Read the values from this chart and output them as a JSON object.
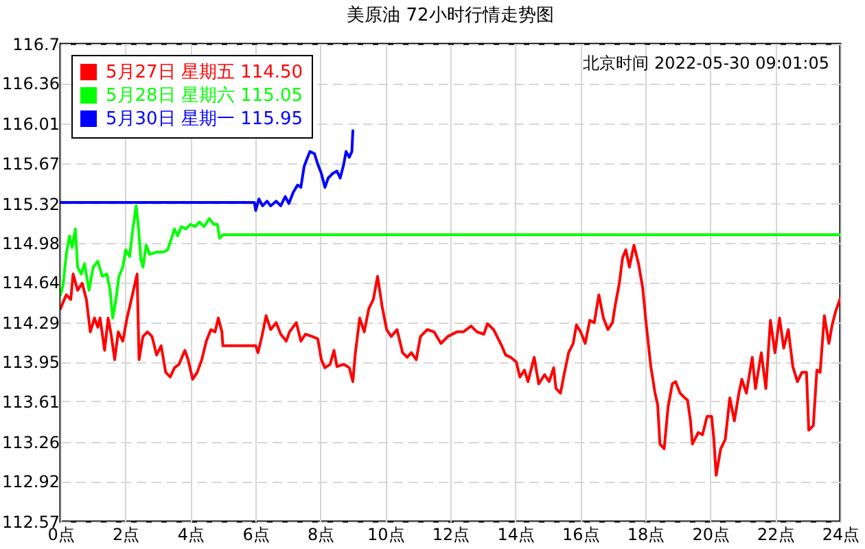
{
  "chart_data": {
    "type": "line",
    "title": "美原油 72小时行情走势图",
    "annotations": [
      "北京时间 2022-05-30 09:01:05"
    ],
    "xlim": [
      0,
      24
    ],
    "xticks": [
      {
        "value": 0,
        "label": "0点"
      },
      {
        "value": 2,
        "label": "2点"
      },
      {
        "value": 4,
        "label": "4点"
      },
      {
        "value": 6,
        "label": "6点"
      },
      {
        "value": 8,
        "label": "8点"
      },
      {
        "value": 10,
        "label": "10点"
      },
      {
        "value": 12,
        "label": "12点"
      },
      {
        "value": 14,
        "label": "14点"
      },
      {
        "value": 16,
        "label": "16点"
      },
      {
        "value": 18,
        "label": "18点"
      },
      {
        "value": 20,
        "label": "20点"
      },
      {
        "value": 22,
        "label": "22点"
      },
      {
        "value": 24,
        "label": "24点"
      }
    ],
    "ylim": [
      112.57,
      116.7
    ],
    "yticks": [
      112.57,
      112.92,
      113.26,
      113.61,
      113.95,
      114.29,
      114.64,
      114.98,
      115.32,
      115.67,
      116.01,
      116.36,
      116.7
    ],
    "grid": true,
    "legend": "top left",
    "line_style": "solid",
    "series": [
      {
        "name": "5月27日 星期五 114.50",
        "color": "#ff0000",
        "x": [
          0,
          0.18,
          0.32,
          0.39,
          0.53,
          0.67,
          0.8,
          0.92,
          1.05,
          1.15,
          1.22,
          1.36,
          1.47,
          1.57,
          1.67,
          1.78,
          1.92,
          2.05,
          2.2,
          2.36,
          2.42,
          2.54,
          2.68,
          2.82,
          2.96,
          3.1,
          3.24,
          3.38,
          3.51,
          3.65,
          3.83,
          3.93,
          4.07,
          4.21,
          4.35,
          4.49,
          4.63,
          4.76,
          4.86,
          4.97,
          5.0,
          6.01,
          6.08,
          6.2,
          6.33,
          6.47,
          6.64,
          6.78,
          6.95,
          7.05,
          7.26,
          7.4,
          7.54,
          7.75,
          7.92,
          8.03,
          8.14,
          8.3,
          8.42,
          8.51,
          8.72,
          8.89,
          9.0,
          9.07,
          9.21,
          9.35,
          9.49,
          9.63,
          9.76,
          9.9,
          10.04,
          10.18,
          10.36,
          10.53,
          10.67,
          10.8,
          10.95,
          11.08,
          11.29,
          11.5,
          11.71,
          11.92,
          12.2,
          12.4,
          12.64,
          12.82,
          13.03,
          13.14,
          13.33,
          13.58,
          13.7,
          13.86,
          14.03,
          14.14,
          14.28,
          14.39,
          14.58,
          14.72,
          14.9,
          15.04,
          15.18,
          15.25,
          15.39,
          15.5,
          15.64,
          15.78,
          15.88,
          16.01,
          16.15,
          16.29,
          16.43,
          16.57,
          16.71,
          16.85,
          16.99,
          17.08,
          17.2,
          17.3,
          17.4,
          17.51,
          17.65,
          17.79,
          17.92,
          18.03,
          18.17,
          18.3,
          18.38,
          18.45,
          18.58,
          18.7,
          18.83,
          18.93,
          19.07,
          19.21,
          19.3,
          19.39,
          19.45,
          19.63,
          19.76,
          19.9,
          20.04,
          20.11,
          20.18,
          20.32,
          20.46,
          20.6,
          20.74,
          20.88,
          20.97,
          21.11,
          21.29,
          21.39,
          21.57,
          21.71,
          21.85,
          21.99,
          22.13,
          22.26,
          22.4,
          22.54,
          22.68,
          22.82,
          22.96,
          23.03,
          23.17,
          23.28,
          23.38,
          23.51,
          23.65,
          23.75,
          23.86,
          24
        ],
        "values": [
          114.41,
          114.53,
          114.49,
          114.71,
          114.57,
          114.63,
          114.49,
          114.21,
          114.33,
          114.25,
          114.33,
          114.05,
          114.33,
          114.17,
          113.97,
          114.21,
          114.13,
          114.33,
          114.51,
          114.71,
          113.97,
          114.17,
          114.21,
          114.17,
          114.01,
          114.09,
          113.86,
          113.82,
          113.9,
          113.93,
          114.05,
          113.97,
          113.8,
          113.86,
          113.97,
          114.13,
          114.23,
          114.21,
          114.33,
          114.21,
          114.09,
          114.09,
          114.03,
          114.17,
          114.35,
          114.23,
          114.29,
          114.19,
          114.13,
          114.21,
          114.29,
          114.13,
          114.19,
          114.17,
          114.15,
          113.97,
          113.9,
          113.93,
          114.05,
          113.91,
          113.93,
          113.9,
          113.78,
          114.01,
          114.33,
          114.21,
          114.41,
          114.49,
          114.69,
          114.43,
          114.23,
          114.17,
          114.23,
          114.03,
          113.99,
          114.03,
          113.97,
          114.17,
          114.23,
          114.21,
          114.11,
          114.17,
          114.21,
          114.21,
          114.26,
          114.21,
          114.19,
          114.28,
          114.23,
          114.09,
          114.01,
          113.99,
          113.95,
          113.82,
          113.88,
          113.78,
          113.99,
          113.76,
          113.84,
          113.78,
          113.9,
          113.72,
          113.68,
          113.84,
          114.03,
          114.11,
          114.27,
          114.21,
          114.11,
          114.31,
          114.29,
          114.53,
          114.33,
          114.23,
          114.29,
          114.45,
          114.63,
          114.85,
          114.92,
          114.77,
          114.96,
          114.8,
          114.59,
          114.27,
          113.91,
          113.68,
          113.58,
          113.24,
          113.2,
          113.56,
          113.76,
          113.78,
          113.68,
          113.64,
          113.62,
          113.44,
          113.24,
          113.34,
          113.32,
          113.48,
          113.48,
          113.28,
          112.97,
          113.2,
          113.28,
          113.64,
          113.44,
          113.68,
          113.8,
          113.68,
          113.99,
          113.72,
          114.03,
          113.72,
          114.31,
          114.03,
          114.33,
          114.07,
          114.23,
          113.91,
          113.78,
          113.86,
          113.86,
          113.36,
          113.4,
          113.88,
          113.86,
          114.35,
          114.11,
          114.27,
          114.39,
          114.5
        ]
      },
      {
        "name": "5月28日 星期六 115.05",
        "color": "#00ff00",
        "x": [
          0,
          0.08,
          0.18,
          0.28,
          0.36,
          0.46,
          0.53,
          0.64,
          0.74,
          0.88,
          1.01,
          1.15,
          1.29,
          1.43,
          1.53,
          1.61,
          1.71,
          1.8,
          1.92,
          2.01,
          2.13,
          2.22,
          2.33,
          2.4,
          2.47,
          2.54,
          2.64,
          2.75,
          2.96,
          3.17,
          3.3,
          3.42,
          3.51,
          3.61,
          3.72,
          3.86,
          4.0,
          4.14,
          4.28,
          4.42,
          4.58,
          4.72,
          4.83,
          4.9,
          5.0,
          24
        ],
        "values": [
          114.53,
          114.61,
          114.88,
          115.04,
          114.94,
          115.1,
          114.77,
          114.71,
          114.8,
          114.57,
          114.77,
          114.82,
          114.69,
          114.71,
          114.57,
          114.33,
          114.49,
          114.69,
          114.77,
          114.92,
          114.86,
          115.08,
          115.3,
          115.12,
          114.85,
          114.77,
          114.96,
          114.88,
          114.9,
          114.9,
          114.92,
          115.02,
          115.1,
          115.04,
          115.12,
          115.1,
          115.14,
          115.12,
          115.16,
          115.12,
          115.19,
          115.14,
          115.14,
          115.02,
          115.05,
          115.05
        ]
      },
      {
        "name": "5月30日 星期一 115.95",
        "color": "#0000ff",
        "x": [
          0,
          5.97,
          6.01,
          6.11,
          6.22,
          6.36,
          6.47,
          6.64,
          6.78,
          6.92,
          7.03,
          7.17,
          7.3,
          7.4,
          7.5,
          7.58,
          7.68,
          7.82,
          7.92,
          8.03,
          8.14,
          8.24,
          8.38,
          8.51,
          8.61,
          8.72,
          8.79,
          8.89,
          8.97,
          9.0
        ],
        "values": [
          115.33,
          115.33,
          115.26,
          115.36,
          115.3,
          115.34,
          115.3,
          115.34,
          115.3,
          115.38,
          115.32,
          115.42,
          115.48,
          115.46,
          115.64,
          115.7,
          115.77,
          115.75,
          115.66,
          115.58,
          115.46,
          115.54,
          115.58,
          115.6,
          115.54,
          115.66,
          115.77,
          115.72,
          115.77,
          115.95
        ]
      }
    ]
  }
}
